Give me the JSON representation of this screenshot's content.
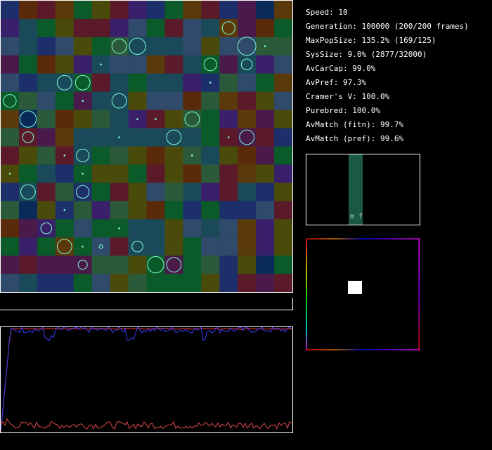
{
  "stats": [
    {
      "label": "Speed:",
      "value": "10"
    },
    {
      "label": "Generation:",
      "value": "100000 (200/200 frames)"
    },
    {
      "label": "MaxPopSize:",
      "value": "135.2% (169/125)"
    },
    {
      "label": "SysSize:",
      "value": "9.0% (2877/32000)"
    },
    {
      "label": "AvCarCap:",
      "value": "99.0%"
    },
    {
      "label": "AvPref:",
      "value": "97.3%"
    },
    {
      "label": "Cramer's V:",
      "value": "100.0%"
    },
    {
      "label": "Purebred:",
      "value": "100.0%"
    },
    {
      "label": "AvMatch (fitn):",
      "value": "99.7%"
    },
    {
      "label": "AvMatch (pref):",
      "value": "99.6%"
    }
  ],
  "preference_panel": {
    "bar_labels": "m f",
    "bar_color": "#1a5a45"
  },
  "grid": {
    "cols": 16,
    "rows": 16,
    "palette": [
      "#1c2f6b",
      "#3a1f6a",
      "#5a1a2a",
      "#2f4a6a",
      "#0a5a2a",
      "#4a4a0a",
      "#5a3a0a",
      "#1a4a5a",
      "#0a2a5a",
      "#4a1a4a",
      "#2a5a3a",
      "#5a2a0a"
    ],
    "colors": [
      [
        0,
        11,
        2,
        6,
        4,
        5,
        2,
        1,
        0,
        4,
        6,
        2,
        0,
        9,
        8,
        6
      ],
      [
        1,
        7,
        4,
        5,
        2,
        2,
        1,
        3,
        4,
        2,
        3,
        7,
        6,
        9,
        11,
        4
      ],
      [
        3,
        7,
        0,
        3,
        5,
        4,
        10,
        7,
        7,
        7,
        3,
        5,
        3,
        3,
        10,
        10
      ],
      [
        9,
        4,
        11,
        5,
        1,
        7,
        3,
        3,
        6,
        2,
        7,
        4,
        9,
        7,
        1,
        3
      ],
      [
        3,
        0,
        7,
        7,
        4,
        2,
        7,
        4,
        7,
        7,
        1,
        0,
        10,
        3,
        4,
        6
      ],
      [
        4,
        10,
        3,
        4,
        9,
        7,
        7,
        5,
        3,
        3,
        11,
        10,
        6,
        2,
        5,
        3
      ],
      [
        6,
        8,
        10,
        11,
        5,
        10,
        7,
        1,
        2,
        5,
        10,
        4,
        1,
        6,
        9,
        5
      ],
      [
        10,
        2,
        9,
        6,
        7,
        7,
        7,
        7,
        7,
        7,
        7,
        4,
        2,
        9,
        2,
        0
      ],
      [
        2,
        5,
        10,
        2,
        7,
        4,
        10,
        5,
        11,
        5,
        10,
        7,
        5,
        11,
        9,
        4
      ],
      [
        5,
        4,
        7,
        0,
        4,
        5,
        5,
        4,
        2,
        5,
        11,
        10,
        2,
        6,
        5,
        1
      ],
      [
        0,
        7,
        2,
        10,
        0,
        4,
        2,
        5,
        3,
        10,
        7,
        1,
        2,
        7,
        0,
        5
      ],
      [
        10,
        8,
        5,
        0,
        10,
        1,
        10,
        5,
        11,
        4,
        0,
        4,
        0,
        0,
        3,
        2
      ],
      [
        11,
        9,
        1,
        4,
        3,
        4,
        4,
        7,
        7,
        5,
        3,
        7,
        3,
        6,
        1,
        5
      ],
      [
        4,
        1,
        4,
        6,
        4,
        3,
        2,
        7,
        7,
        5,
        4,
        3,
        3,
        6,
        1,
        5
      ],
      [
        9,
        2,
        9,
        9,
        9,
        10,
        10,
        5,
        4,
        9,
        4,
        10,
        0,
        5,
        8,
        4
      ],
      [
        3,
        7,
        0,
        0,
        4,
        3,
        5,
        10,
        4,
        4,
        4,
        5,
        0,
        2,
        9,
        2
      ]
    ]
  },
  "creatures": [
    [
      12,
      1,
      0.7
    ],
    [
      6,
      2,
      0.8
    ],
    [
      7,
      2,
      0.9
    ],
    [
      13,
      2,
      1.0
    ],
    [
      5,
      3,
      0.1
    ],
    [
      11,
      3,
      0.7
    ],
    [
      13,
      3,
      0.6
    ],
    [
      3,
      4,
      0.8
    ],
    [
      4,
      4,
      0.8
    ],
    [
      11,
      4,
      0.1
    ],
    [
      0,
      5,
      0.7
    ],
    [
      4,
      5,
      0.1
    ],
    [
      6,
      5,
      0.8
    ],
    [
      1,
      6,
      0.9
    ],
    [
      10,
      6,
      0.8
    ],
    [
      1,
      7,
      0.6
    ],
    [
      9,
      7,
      0.8
    ],
    [
      13,
      7,
      0.8
    ],
    [
      4,
      8,
      0.7
    ],
    [
      3,
      8,
      0.1
    ],
    [
      10,
      8,
      0.1
    ],
    [
      0,
      9,
      0.1
    ],
    [
      4,
      9,
      0.1
    ],
    [
      1,
      10,
      0.8
    ],
    [
      4,
      10,
      0.7
    ],
    [
      2,
      12,
      0.6
    ],
    [
      6,
      12,
      0.1
    ],
    [
      3,
      13,
      0.8
    ],
    [
      4,
      13,
      0.1
    ],
    [
      5,
      13,
      0.2
    ],
    [
      7,
      13,
      0.6
    ],
    [
      4,
      14,
      0.5
    ],
    [
      8,
      14,
      0.9
    ],
    [
      9,
      14,
      0.8
    ],
    [
      14,
      2,
      0.1
    ],
    [
      6,
      7,
      0.1
    ],
    [
      7,
      6,
      0.1
    ],
    [
      8,
      6,
      0.1
    ],
    [
      12,
      7,
      0.1
    ],
    [
      3,
      11,
      0.1
    ]
  ],
  "history_series": [
    {
      "name": "top-red",
      "color": "#ff3b3b",
      "level": 0.985,
      "noise": 0.006
    },
    {
      "name": "top-blue",
      "color": "#3b3bff",
      "level": 0.975,
      "noise": 0.03
    },
    {
      "name": "bottom-red",
      "color": "#e04a4a",
      "level": 0.07,
      "noise": 0.035
    }
  ]
}
